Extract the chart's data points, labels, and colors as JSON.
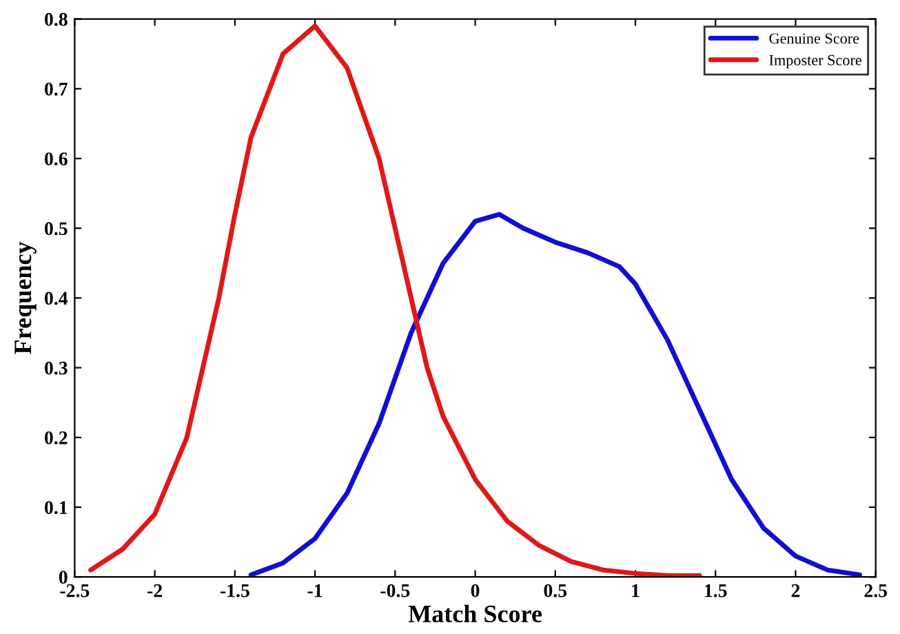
{
  "chart_data": {
    "type": "line",
    "xlabel": "Match Score",
    "ylabel": "Frequency",
    "xlim": [
      -2.5,
      2.5
    ],
    "xticks": [
      -2.5,
      -2,
      -1.5,
      -1,
      -0.5,
      0,
      0.5,
      1,
      1.5,
      2,
      2.5
    ],
    "ylim": [
      0,
      0.8
    ],
    "yticks": [
      0,
      0.1,
      0.2,
      0.3,
      0.4,
      0.5,
      0.6,
      0.7,
      0.8
    ],
    "grid": false,
    "legend": "top right",
    "marker": "none",
    "line_style": "solid",
    "series": [
      {
        "name": "Genuine Score",
        "color": "#1010d0",
        "x": [
          -1.4,
          -1.2,
          -1.0,
          -0.8,
          -0.6,
          -0.4,
          -0.2,
          0.0,
          0.15,
          0.3,
          0.5,
          0.7,
          0.9,
          1.0,
          1.2,
          1.4,
          1.6,
          1.8,
          2.0,
          2.2,
          2.4
        ],
        "values": [
          0.003,
          0.02,
          0.055,
          0.12,
          0.22,
          0.35,
          0.45,
          0.51,
          0.52,
          0.5,
          0.48,
          0.465,
          0.445,
          0.42,
          0.34,
          0.24,
          0.14,
          0.07,
          0.03,
          0.01,
          0.003
        ]
      },
      {
        "name": "Imposter Score",
        "color": "#e01818",
        "x": [
          -2.4,
          -2.2,
          -2.0,
          -1.8,
          -1.6,
          -1.5,
          -1.4,
          -1.2,
          -1.0,
          -0.8,
          -0.6,
          -0.4,
          -0.3,
          -0.2,
          0.0,
          0.2,
          0.4,
          0.6,
          0.8,
          1.0,
          1.2,
          1.4
        ],
        "values": [
          0.01,
          0.04,
          0.09,
          0.2,
          0.4,
          0.52,
          0.63,
          0.75,
          0.79,
          0.73,
          0.6,
          0.4,
          0.3,
          0.23,
          0.14,
          0.08,
          0.045,
          0.022,
          0.01,
          0.005,
          0.002,
          0.002
        ]
      }
    ]
  }
}
